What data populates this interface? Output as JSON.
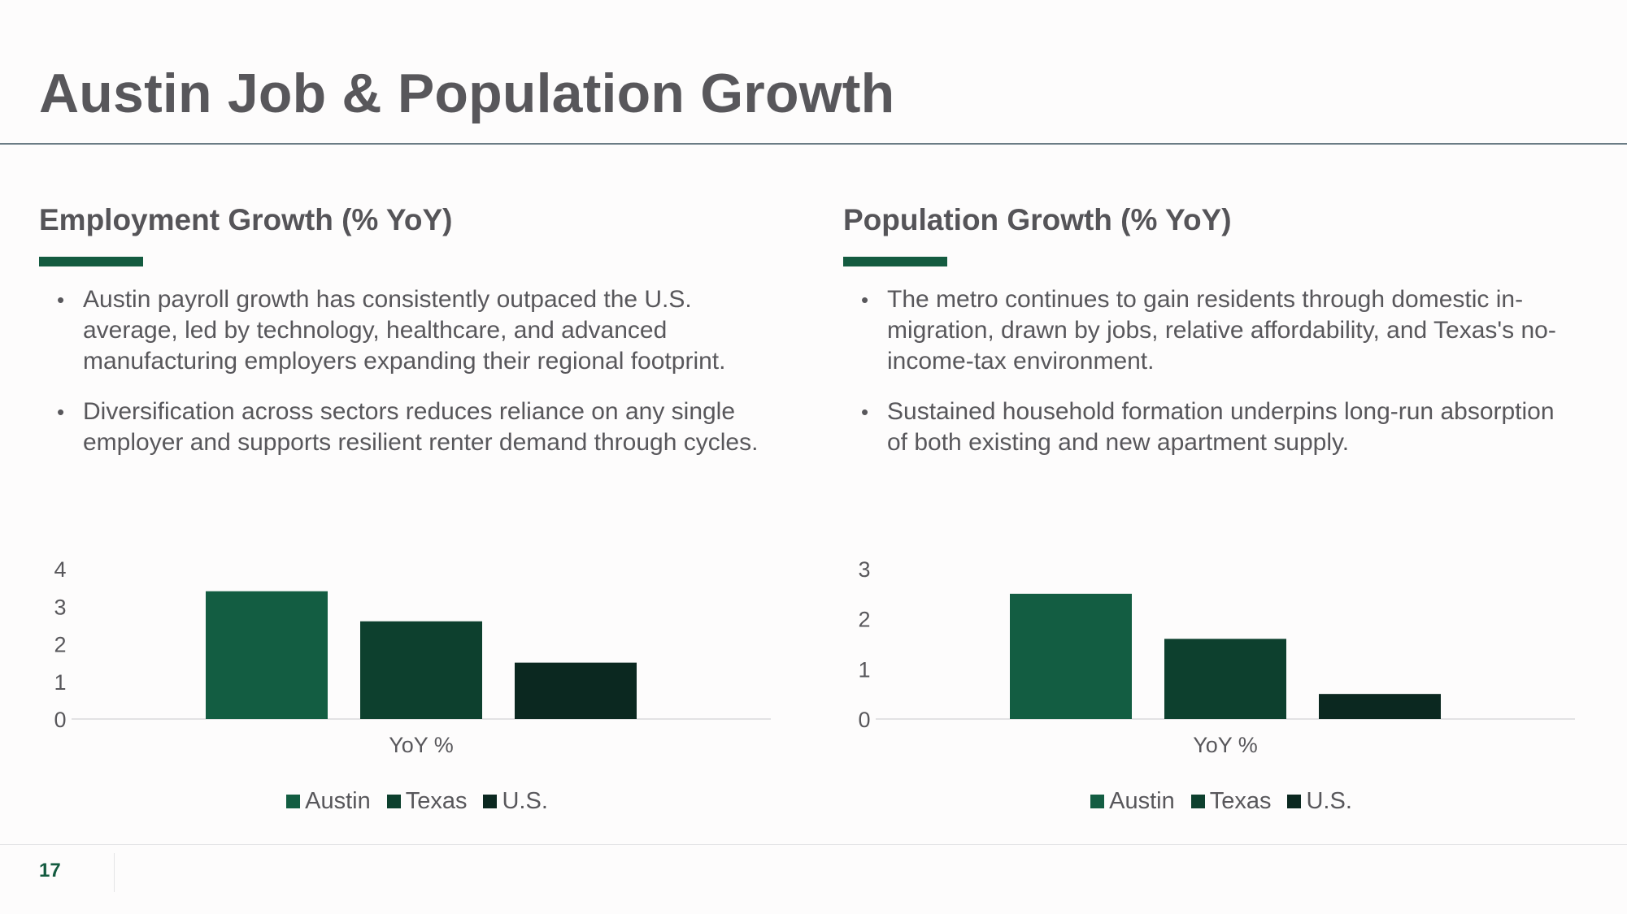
{
  "slide": {
    "title": "Austin Job & Population Growth",
    "page_number": "17"
  },
  "colors": {
    "accent": "#145b40",
    "austin": "#135d42",
    "texas": "#0d402e",
    "us": "#0b2820"
  },
  "panels": [
    {
      "title": "Employment Growth (% YoY)",
      "bullets": [
        "Austin payroll growth has consistently outpaced the U.S. average, led by technology, healthcare, and advanced manufacturing employers expanding their regional footprint.",
        "Diversification across sectors reduces reliance on any single employer and supports resilient renter demand through cycles."
      ]
    },
    {
      "title": "Population Growth (% YoY)",
      "bullets": [
        "The metro continues to gain residents through domestic in-migration, drawn by jobs, relative affordability, and Texas's no-income-tax environment.",
        "Sustained household formation underpins long-run absorption of both existing and new apartment supply."
      ]
    }
  ],
  "chart_data": [
    {
      "type": "bar",
      "categories": [
        "YoY %"
      ],
      "series": [
        {
          "name": "Austin",
          "values": [
            3.4
          ]
        },
        {
          "name": "Texas",
          "values": [
            2.6
          ]
        },
        {
          "name": "U.S.",
          "values": [
            1.5
          ]
        }
      ],
      "ylim": [
        0,
        4
      ],
      "yticks": [
        "0",
        "1",
        "2",
        "3",
        "4"
      ],
      "grid": false,
      "legend": "bottom"
    },
    {
      "type": "bar",
      "categories": [
        "YoY %"
      ],
      "series": [
        {
          "name": "Austin",
          "values": [
            2.5
          ]
        },
        {
          "name": "Texas",
          "values": [
            1.6
          ]
        },
        {
          "name": "U.S.",
          "values": [
            0.5
          ]
        }
      ],
      "ylim": [
        0,
        3
      ],
      "yticks": [
        "0",
        "1",
        "2",
        "3"
      ],
      "grid": false,
      "legend": "bottom"
    }
  ]
}
